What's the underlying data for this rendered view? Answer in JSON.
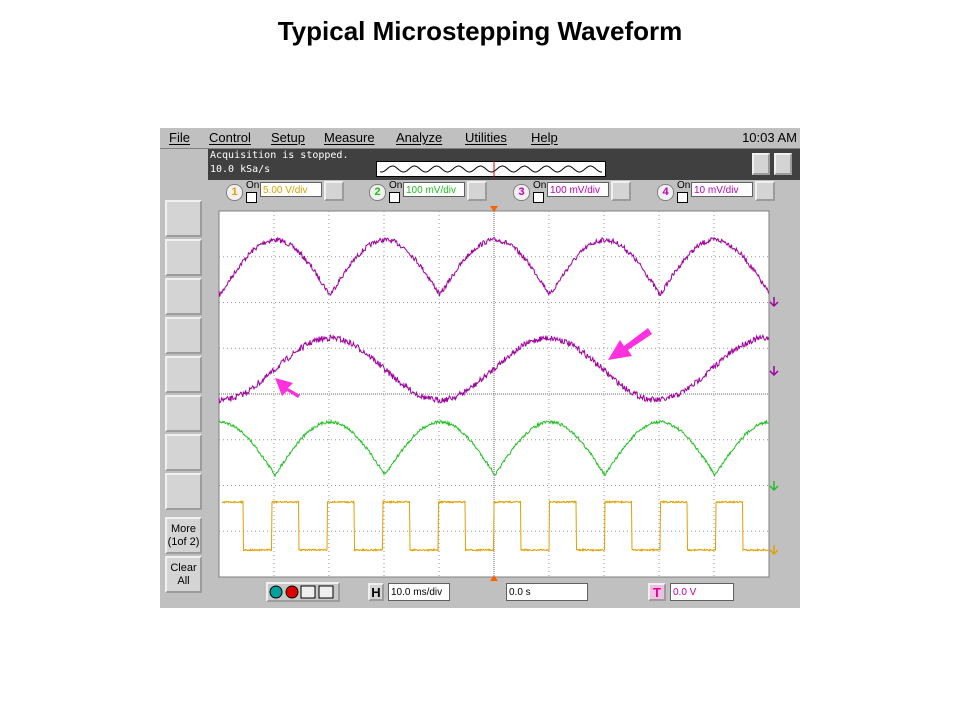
{
  "title": "Typical Microstepping Waveform",
  "menu": {
    "items": [
      "File",
      "Control",
      "Setup",
      "Measure",
      "Analyze",
      "Utilities",
      "Help"
    ],
    "clock": "10:03 AM"
  },
  "status": {
    "lines": [
      "Acquisition is stopped.",
      "10.0 kSa/s"
    ]
  },
  "channels": [
    {
      "number": "1",
      "on": "On",
      "scale": "5.00 V/div"
    },
    {
      "number": "2",
      "on": "On",
      "scale": "100 mV/div"
    },
    {
      "number": "3",
      "on": "On",
      "scale": "100 mV/div"
    },
    {
      "number": "4",
      "on": "On",
      "scale": "10 mV/div"
    }
  ],
  "side_buttons": [
    [
      "More",
      "(1of 2)"
    ],
    [
      "Clear",
      "All"
    ]
  ],
  "timebase": {
    "label": "H",
    "scale": "10.0 ms/div",
    "position": "0.0 s"
  },
  "trigger": {
    "label": "T",
    "level": "0.0 V"
  }
}
